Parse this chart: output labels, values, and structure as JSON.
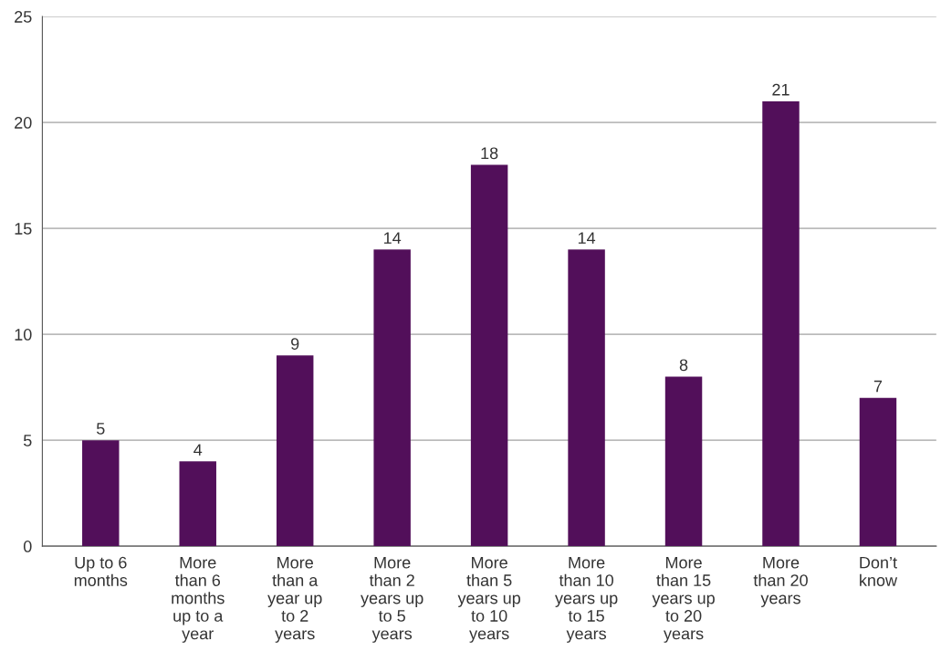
{
  "chart_data": {
    "type": "bar",
    "categories": [
      "Up to 6 months",
      "More than 6 months up to a year",
      "More than a year up to 2 years",
      "More than 2 years up to 5 years",
      "More than 5 years up to 10 years",
      "More than 10 years up to 15 years",
      "More than 15 years up to 20 years",
      "More than 20 years",
      "Don’t know"
    ],
    "values": [
      5,
      4,
      9,
      14,
      18,
      14,
      8,
      21,
      7
    ],
    "color": "#520f5a",
    "ylim": [
      0,
      25
    ],
    "yticks": [
      0,
      5,
      10,
      15,
      20,
      25
    ],
    "grid": "y",
    "data_labels": true
  }
}
